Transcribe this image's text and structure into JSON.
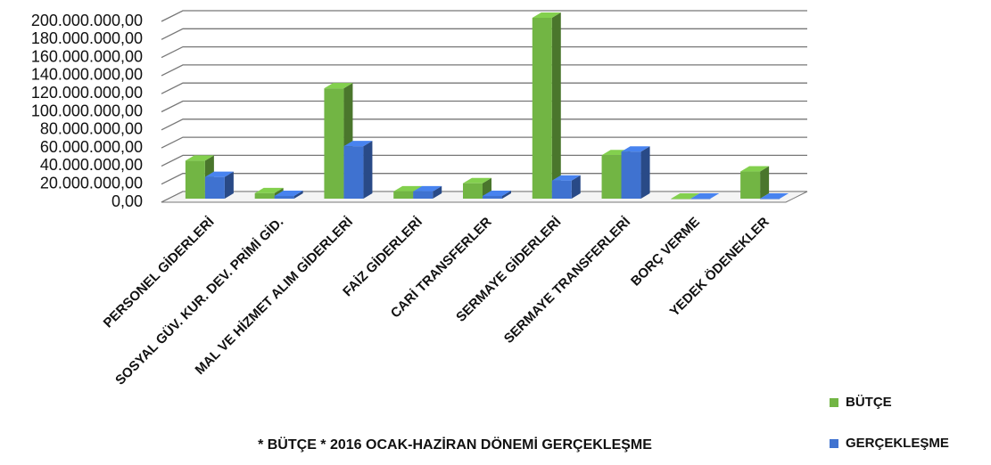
{
  "chart_data": {
    "type": "bar3d",
    "subtitle": "* BÜTÇE  * 2016  OCAK-HAZİRAN DÖNEMİ GERÇEKLEŞME",
    "categories": [
      "PERSONEL GİDERLERİ",
      "SOSYAL GÜV. KUR. DEV. PRİMİ GİD.",
      "MAL VE HİZMET ALIM GİDERLERİ",
      "FAİZ GİDERLERİ",
      "CARİ TRANSFERLER",
      "SERMAYE GİDERLERİ",
      "SERMAYE TRANSFERLERİ",
      "BORÇ VERME",
      "YEDEK ÖDENEKLER"
    ],
    "series": [
      {
        "name": "BÜTÇE",
        "color": "#72b544",
        "values": [
          42000000,
          6000000,
          122000000,
          8000000,
          17000000,
          200000000,
          48000000,
          0,
          30000000
        ]
      },
      {
        "name": "GERÇEKLEŞME",
        "color": "#3f72d0",
        "values": [
          24000000,
          3000000,
          58000000,
          8000000,
          3000000,
          20000000,
          52000000,
          0,
          0
        ]
      }
    ],
    "ylim": [
      0,
      200000000
    ],
    "yticks": [
      {
        "value": 0,
        "label": "0,00"
      },
      {
        "value": 20000000,
        "label": "20.000.000,00"
      },
      {
        "value": 40000000,
        "label": "40.000.000,00"
      },
      {
        "value": 60000000,
        "label": "60.000.000,00"
      },
      {
        "value": 80000000,
        "label": "80.000.000,00"
      },
      {
        "value": 100000000,
        "label": "100.000.000,00"
      },
      {
        "value": 120000000,
        "label": "120.000.000,00"
      },
      {
        "value": 140000000,
        "label": "140.000.000,00"
      },
      {
        "value": 160000000,
        "label": "160.000.000,00"
      },
      {
        "value": 180000000,
        "label": "180.000.000,00"
      },
      {
        "value": 200000000,
        "label": "200.000.000,00"
      }
    ],
    "grid": true,
    "legend": "bottom-right"
  }
}
